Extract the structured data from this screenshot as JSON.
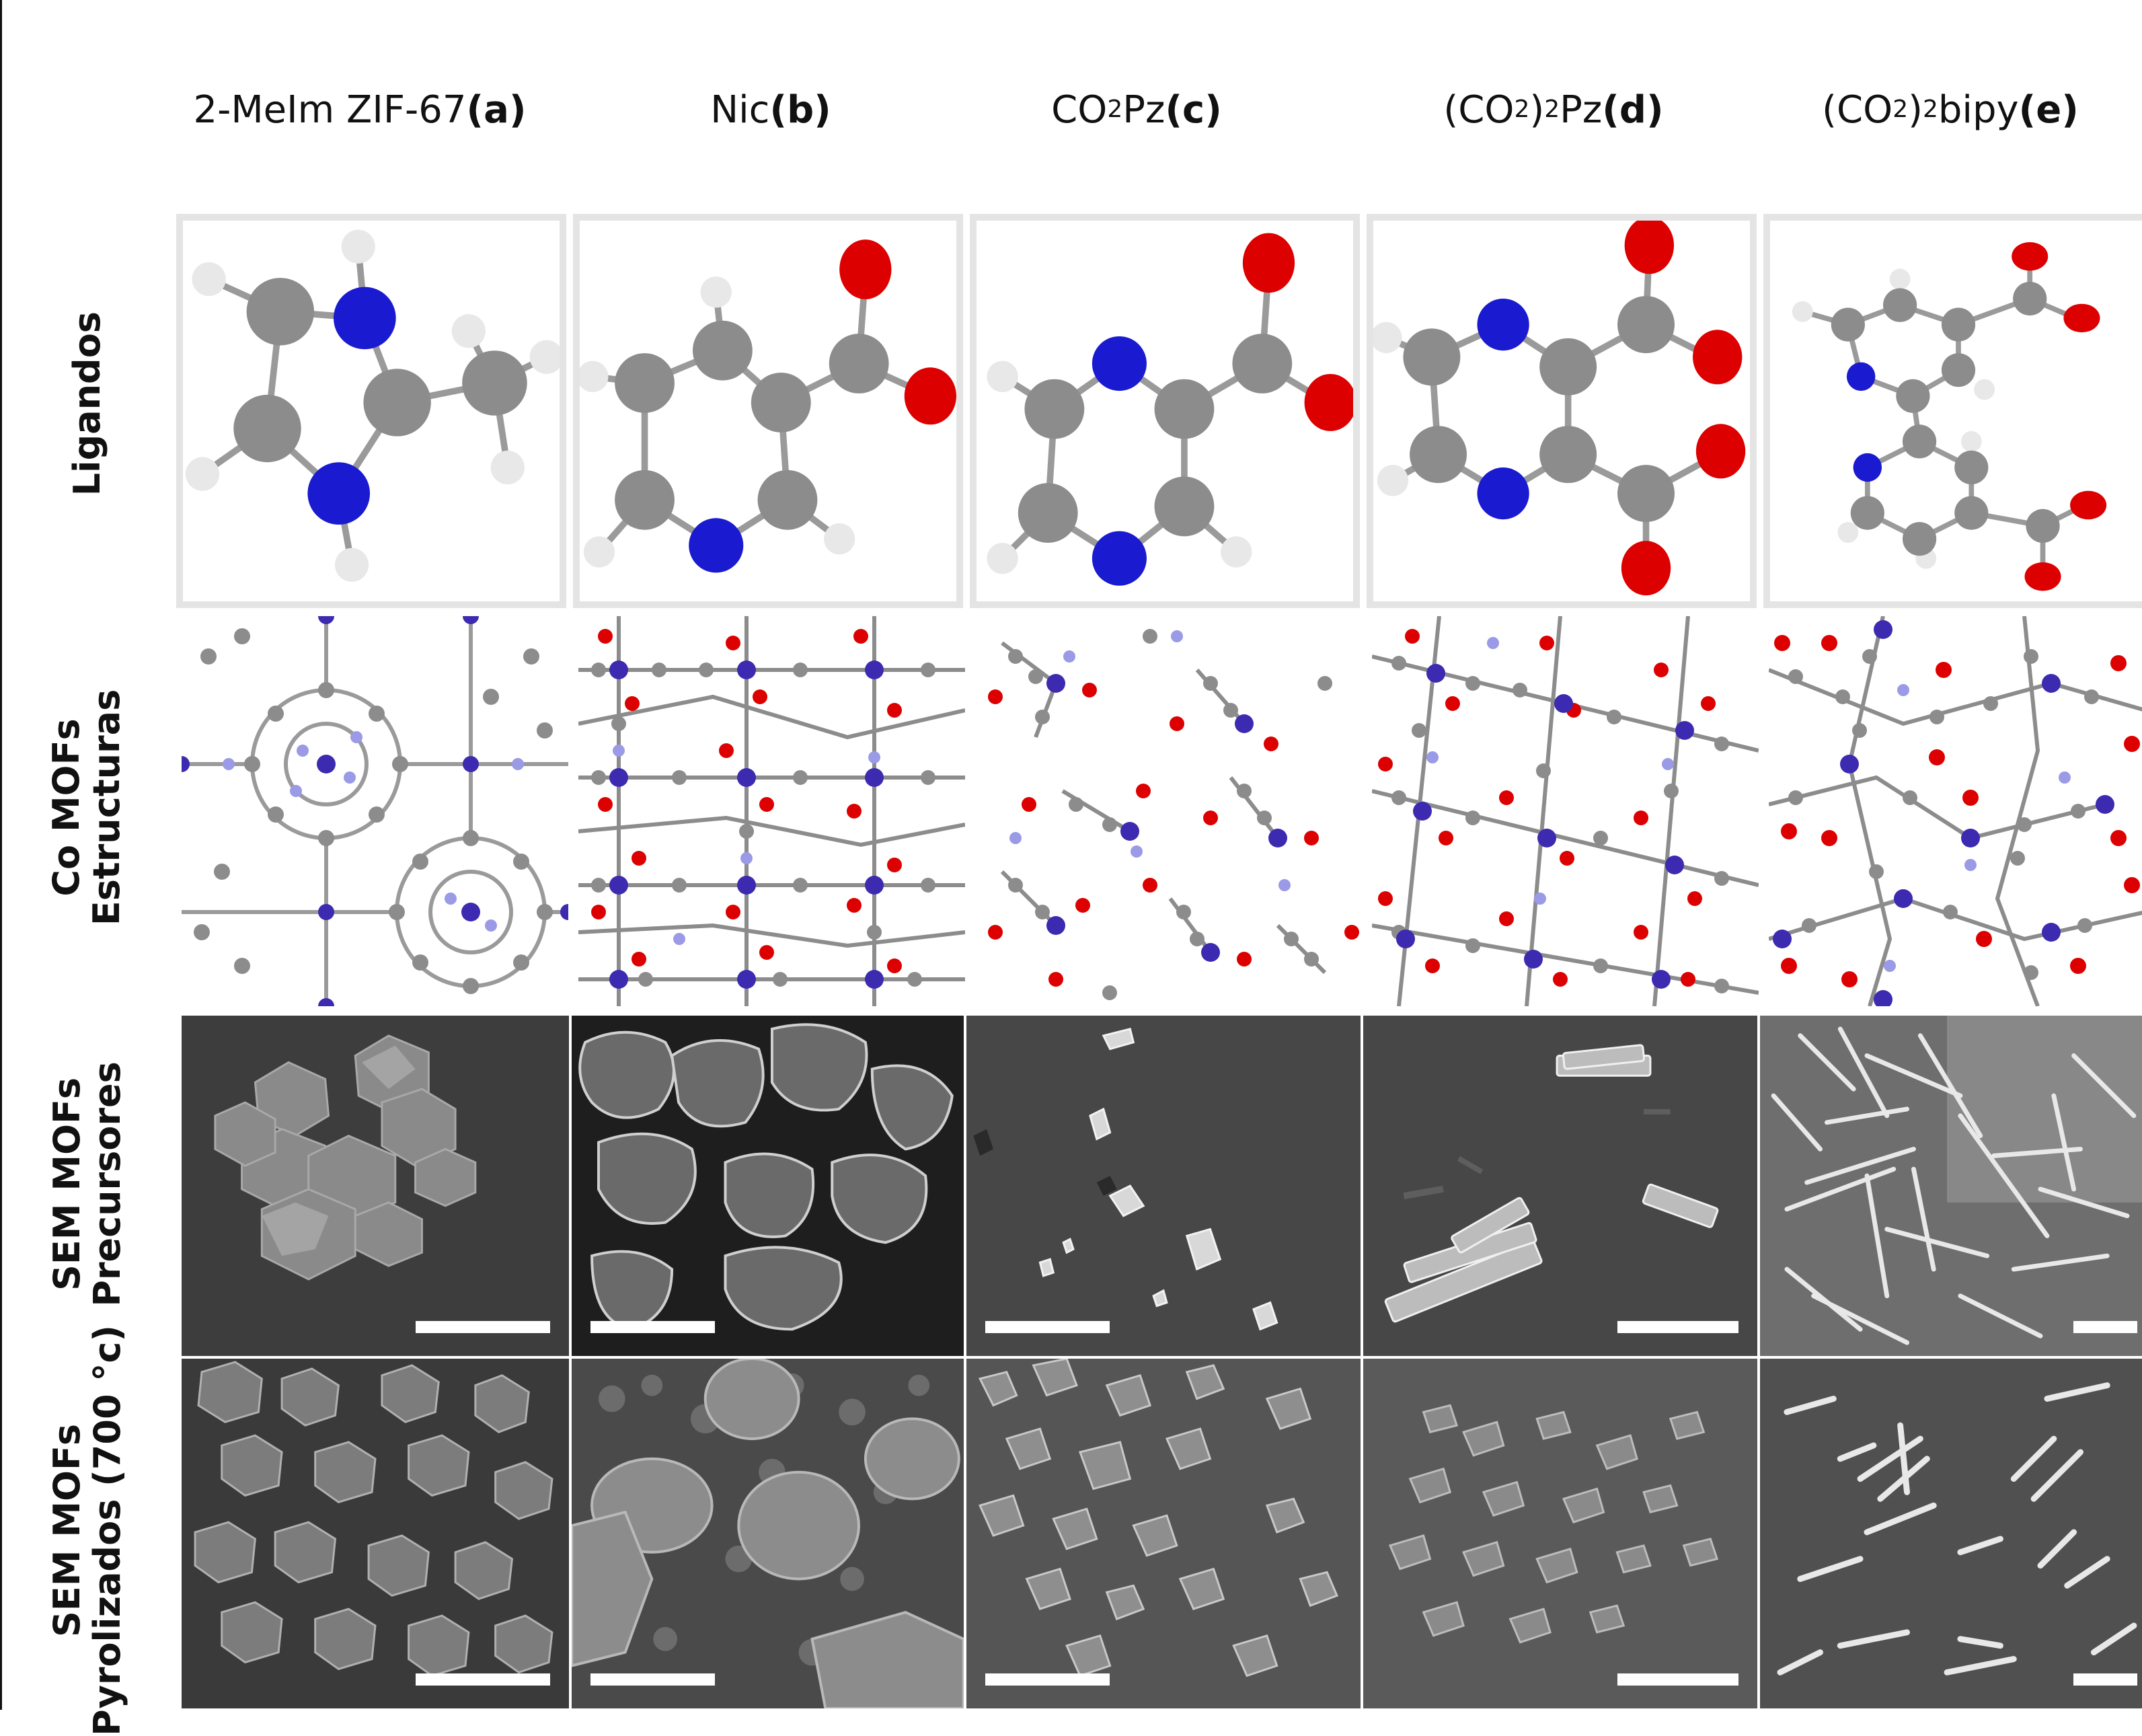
{
  "columns": [
    {
      "pre": "2-MeIm ZIF-67 ",
      "letter": "(a)"
    },
    {
      "pre": "Nic ",
      "letter": "(b)"
    },
    {
      "pre": "CO",
      "sub": "2",
      "post": "Pz ",
      "letter": "(c)"
    },
    {
      "pre": "(CO",
      "sub": "2",
      "mid": ")",
      "sub2": "2",
      "post": "Pz ",
      "letter": "(d)"
    },
    {
      "pre": "(CO",
      "sub": "2",
      "mid": ")",
      "sub2": "2",
      "post": "bipy ",
      "letter": "(e)"
    }
  ],
  "rows": {
    "ligands": {
      "line1": "Ligandos"
    },
    "structures": {
      "line1": "Co MOFs",
      "line2": "Estructuras"
    },
    "sem_precursors": {
      "line1": "SEM  MOFs",
      "line2": "Precursores"
    },
    "sem_pyrolyzed": {
      "line1": "SEM  MOFs",
      "line2": "Pyrolizados (700 °c)"
    }
  },
  "colors": {
    "carbon": "#8c8c8c",
    "nitrogen": "#1a1ad0",
    "oxygen": "#dd0000",
    "hydrogen": "#e8e8e8",
    "cobalt": "#3c2ab0",
    "framework_n": "#9a9ae6",
    "sem_background": "#474747"
  }
}
